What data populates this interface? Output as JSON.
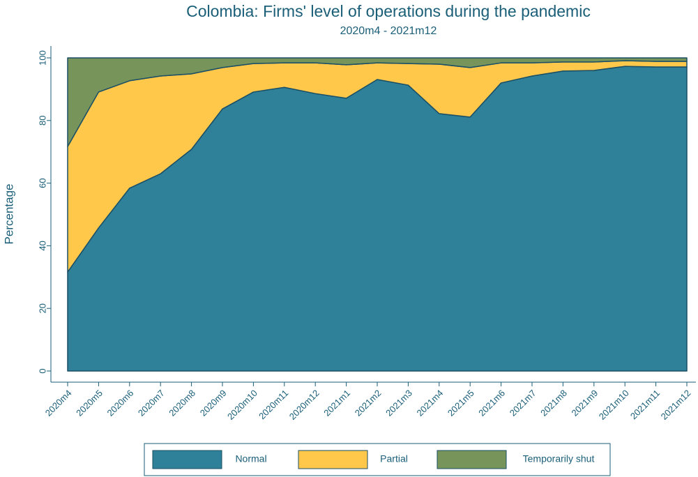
{
  "chart_data": {
    "type": "stacked_area",
    "title": "Colombia: Firms' level of operations during the pandemic",
    "subtitle": "2020m4 - 2021m12",
    "y_label": "Percentage",
    "categories": [
      "2020m4",
      "2020m5",
      "2020m6",
      "2020m7",
      "2020m8",
      "2020m9",
      "2020m10",
      "2020m11",
      "2020m12",
      "2021m1",
      "2021m2",
      "2021m3",
      "2021m4",
      "2021m5",
      "2021m6",
      "2021m7",
      "2021m8",
      "2021m9",
      "2021m10",
      "2021m11",
      "2021m12"
    ],
    "series": [
      {
        "name": "Normal",
        "color": "#2f8199",
        "values": [
          31.6,
          45.7,
          58.4,
          63.0,
          70.8,
          83.7,
          89.1,
          90.6,
          88.6,
          87.1,
          93.1,
          91.3,
          82.2,
          81.1,
          92.0,
          94.2,
          95.8,
          96.0,
          97.3,
          97.1,
          97.1
        ]
      },
      {
        "name": "Partial",
        "color": "#ffc84a",
        "values": [
          40.1,
          43.4,
          34.3,
          31.2,
          24.1,
          13.2,
          9.1,
          7.8,
          9.8,
          10.7,
          5.3,
          6.9,
          15.8,
          15.8,
          6.4,
          4.2,
          2.9,
          2.7,
          1.8,
          1.8,
          1.8
        ]
      },
      {
        "name": "Temporarily shut",
        "color": "#77945b",
        "values": [
          28.3,
          10.9,
          7.3,
          5.8,
          5.1,
          3.1,
          1.8,
          1.6,
          1.6,
          2.2,
          1.6,
          1.8,
          2.0,
          3.1,
          1.6,
          1.6,
          1.3,
          1.3,
          0.9,
          1.1,
          1.1
        ]
      }
    ],
    "ylim": [
      0,
      100
    ],
    "yticks": [
      0,
      20,
      40,
      60,
      80,
      100
    ]
  }
}
